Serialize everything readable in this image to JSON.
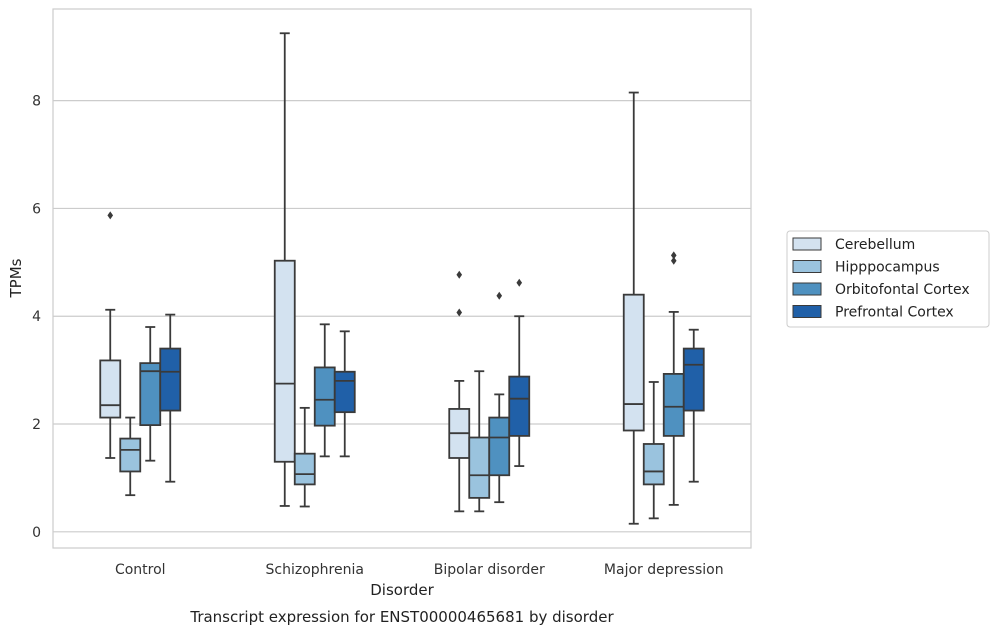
{
  "chart_data": {
    "type": "boxplot",
    "title": "",
    "xlabel": "Disorder",
    "ylabel": "TPMs",
    "caption": "Transcript expression for ENST00000465681 by disorder",
    "ylim": [
      -0.3,
      9.7
    ],
    "yticks": [
      0,
      2,
      4,
      6,
      8
    ],
    "grid": "horizontal",
    "legend_position": "right",
    "categories": [
      "Control",
      "Schizophrenia",
      "Bipolar disorder",
      "Major depression"
    ],
    "series": [
      {
        "name": "Cerebellum",
        "color": "#d3e2f0",
        "boxes": [
          {
            "whislo": 1.37,
            "q1": 2.12,
            "med": 2.35,
            "q3": 3.18,
            "whishi": 4.12,
            "fliers": [
              5.87
            ]
          },
          {
            "whislo": 0.48,
            "q1": 1.3,
            "med": 2.75,
            "q3": 5.03,
            "whishi": 9.25,
            "fliers": []
          },
          {
            "whislo": 0.38,
            "q1": 1.37,
            "med": 1.83,
            "q3": 2.28,
            "whishi": 2.8,
            "fliers": [
              4.07,
              4.77
            ]
          },
          {
            "whislo": 0.15,
            "q1": 1.88,
            "med": 2.37,
            "q3": 4.4,
            "whishi": 8.15,
            "fliers": []
          }
        ]
      },
      {
        "name": "Hipppocampus",
        "color": "#9ac3de",
        "boxes": [
          {
            "whislo": 0.68,
            "q1": 1.12,
            "med": 1.52,
            "q3": 1.73,
            "whishi": 2.12,
            "fliers": []
          },
          {
            "whislo": 0.47,
            "q1": 0.88,
            "med": 1.07,
            "q3": 1.45,
            "whishi": 2.3,
            "fliers": []
          },
          {
            "whislo": 0.38,
            "q1": 0.63,
            "med": 1.05,
            "q3": 1.75,
            "whishi": 2.98,
            "fliers": []
          },
          {
            "whislo": 0.25,
            "q1": 0.88,
            "med": 1.12,
            "q3": 1.63,
            "whishi": 2.78,
            "fliers": []
          }
        ]
      },
      {
        "name": "Orbitofontal Cortex",
        "color": "#4f91c0",
        "boxes": [
          {
            "whislo": 1.32,
            "q1": 1.98,
            "med": 2.98,
            "q3": 3.13,
            "whishi": 3.8,
            "fliers": []
          },
          {
            "whislo": 1.4,
            "q1": 1.97,
            "med": 2.45,
            "q3": 3.05,
            "whishi": 3.85,
            "fliers": []
          },
          {
            "whislo": 0.55,
            "q1": 1.05,
            "med": 1.75,
            "q3": 2.12,
            "whishi": 2.55,
            "fliers": [
              4.38
            ]
          },
          {
            "whislo": 0.5,
            "q1": 1.78,
            "med": 2.32,
            "q3": 2.93,
            "whishi": 4.08,
            "fliers": [
              5.03,
              5.13
            ]
          }
        ]
      },
      {
        "name": "Prefrontal Cortex",
        "color": "#2060a8",
        "boxes": [
          {
            "whislo": 0.93,
            "q1": 2.25,
            "med": 2.97,
            "q3": 3.4,
            "whishi": 4.03,
            "fliers": []
          },
          {
            "whislo": 1.4,
            "q1": 2.22,
            "med": 2.8,
            "q3": 2.97,
            "whishi": 3.72,
            "fliers": []
          },
          {
            "whislo": 1.22,
            "q1": 1.78,
            "med": 2.47,
            "q3": 2.88,
            "whishi": 4.0,
            "fliers": [
              4.62
            ]
          },
          {
            "whislo": 0.93,
            "q1": 2.25,
            "med": 3.1,
            "q3": 3.4,
            "whishi": 3.75,
            "fliers": []
          }
        ]
      }
    ]
  }
}
